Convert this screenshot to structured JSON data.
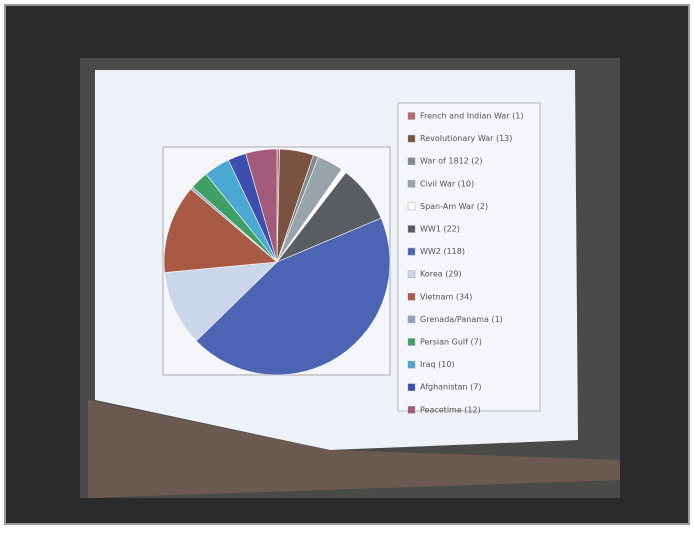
{
  "chart_data": {
    "type": "pie",
    "categories": [
      "French and Indian War (1)",
      "Revolutionary War (13)",
      "War of 1812 (2)",
      "Civil War (10)",
      "Span-Am War (2)",
      "WW1 (22)",
      "WW2 (118)",
      "Korea (29)",
      "Vietnam (34)",
      "Grenada/Panama (1)",
      "Persian Gulf (7)",
      "Iraq (10)",
      "Afghanistan (7)",
      "Peacetime (12)"
    ],
    "values": [
      1,
      13,
      2,
      10,
      2,
      22,
      118,
      29,
      34,
      1,
      7,
      10,
      7,
      12
    ],
    "colors": [
      "#b46a6e",
      "#7a5242",
      "#808a90",
      "#98a4aa",
      "#ffffff",
      "#5a5e62",
      "#4c64b4",
      "#cbd6ea",
      "#a85a44",
      "#8ea4c2",
      "#3ea064",
      "#4aa8d2",
      "#3c4eae",
      "#a45a7a"
    ],
    "legend": "right"
  }
}
